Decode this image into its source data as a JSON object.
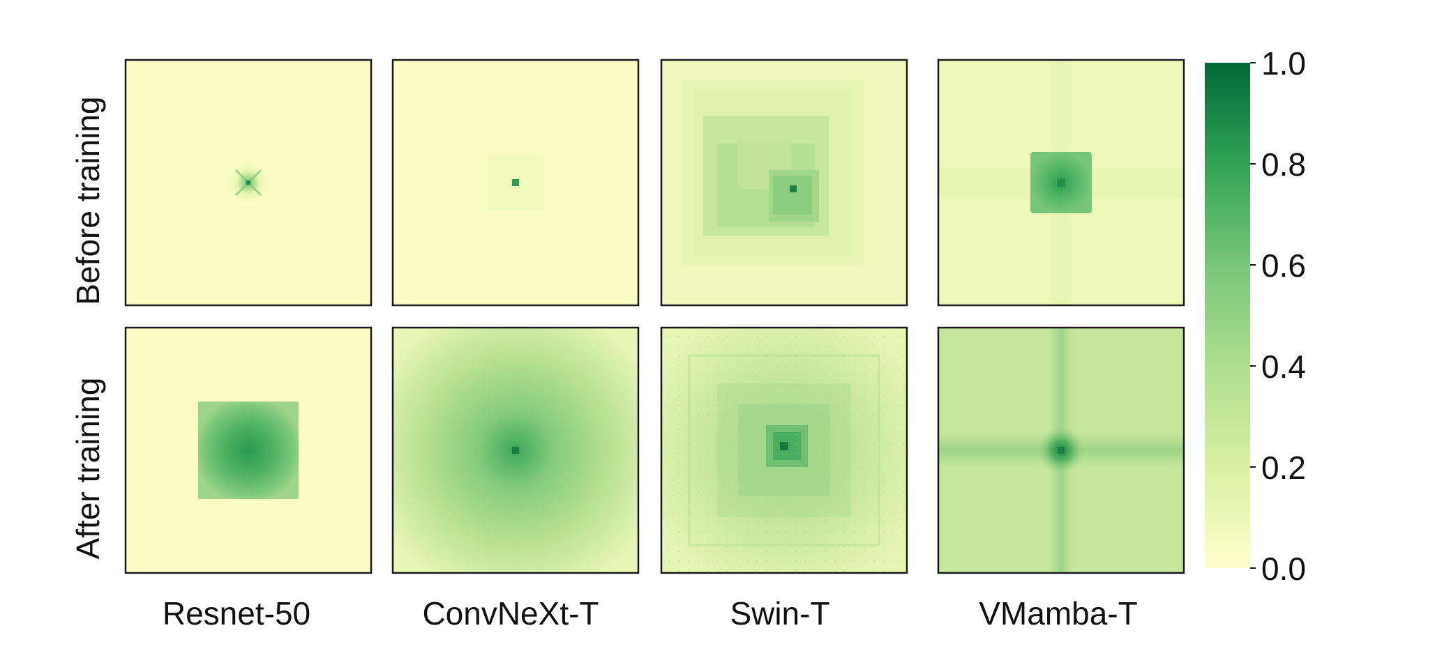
{
  "chart_data": {
    "type": "heatmap",
    "rows": [
      "Before training",
      "After training"
    ],
    "columns": [
      "Resnet-50",
      "ConvNeXt-T",
      "Swin-T",
      "VMamba-T"
    ],
    "colorbar": {
      "min": 0.0,
      "max": 1.0,
      "ticks": [
        "0.0",
        "0.2",
        "0.4",
        "0.6",
        "0.8",
        "1.0"
      ],
      "colormap": "YlGn",
      "colors": [
        "#ffffcc",
        "#d9f0a3",
        "#addd8e",
        "#78c679",
        "#31a354",
        "#006837"
      ]
    },
    "panels": [
      {
        "row": "Before training",
        "column": "Resnet-50",
        "pattern": "small cross-shaped response at center",
        "peak": 0.8,
        "spread": 0.1
      },
      {
        "row": "Before training",
        "column": "ConvNeXt-T",
        "pattern": "single center pixel with faint square",
        "peak": 0.85,
        "spread": 0.1
      },
      {
        "row": "Before training",
        "column": "Swin-T",
        "pattern": "nested window squares offset from center",
        "peak": 0.9,
        "spread": 0.6
      },
      {
        "row": "Before training",
        "column": "VMamba-T",
        "pattern": "square blob with faint cross",
        "peak": 0.75,
        "spread": 0.25
      },
      {
        "row": "After training",
        "column": "Resnet-50",
        "pattern": "large square blob",
        "peak": 0.75,
        "spread": 0.4
      },
      {
        "row": "After training",
        "column": "ConvNeXt-T",
        "pattern": "broad radial decay from center",
        "peak": 0.8,
        "spread": 1.0
      },
      {
        "row": "After training",
        "column": "Swin-T",
        "pattern": "nested window squares with grid texture",
        "peak": 0.85,
        "spread": 0.9
      },
      {
        "row": "After training",
        "column": "VMamba-T",
        "pattern": "global response with cross at center",
        "peak": 0.85,
        "spread": 1.0
      }
    ]
  }
}
